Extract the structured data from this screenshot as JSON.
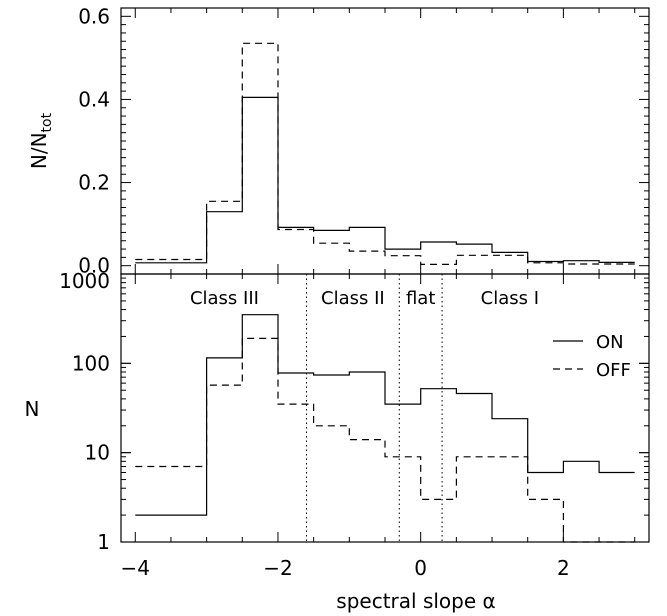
{
  "chart_data": [
    {
      "type": "line",
      "panel": "top",
      "ylabel_main": "N/N",
      "ylabel_sub": "tot",
      "xlim": [
        -4.2,
        3.2
      ],
      "ylim": [
        -0.02,
        0.62
      ],
      "yscale": "linear",
      "yticks": [
        0.0,
        0.2,
        0.4,
        0.6
      ],
      "ytick_labels": [
        "0.0",
        "0.2",
        "0.4",
        "0.6"
      ],
      "bin_edges": [
        -4,
        -3.5,
        -3,
        -2.5,
        -2,
        -1.5,
        -1,
        -0.5,
        0,
        0.5,
        1,
        1.5,
        2,
        2.5,
        3
      ],
      "series": [
        {
          "name": "ON",
          "style": "solid",
          "values": [
            0.007,
            0.007,
            0.13,
            0.405,
            0.092,
            0.085,
            0.092,
            0.04,
            0.057,
            0.052,
            0.032,
            0.01,
            0.012,
            0.008
          ]
        },
        {
          "name": "OFF",
          "style": "dashed",
          "values": [
            0.015,
            0.015,
            0.155,
            0.535,
            0.087,
            0.054,
            0.035,
            0.024,
            0.003,
            0.025,
            0.025,
            0.007,
            0.004,
            0.004
          ]
        }
      ]
    },
    {
      "type": "line",
      "panel": "bottom",
      "xlabel": "spectral slope α",
      "ylabel": "N",
      "xlim": [
        -4.2,
        3.2
      ],
      "ylim": [
        1,
        1000
      ],
      "yscale": "log",
      "xticks": [
        -4,
        -2,
        0,
        2
      ],
      "xtick_labels": [
        "−4",
        "−2",
        "0",
        "2"
      ],
      "yticks": [
        1,
        10,
        100,
        1000
      ],
      "ytick_labels": [
        "1",
        "10",
        "100",
        "1000"
      ],
      "bin_edges": [
        -4,
        -3.5,
        -3,
        -2.5,
        -2,
        -1.5,
        -1,
        -0.5,
        0,
        0.5,
        1,
        1.5,
        2,
        2.5,
        3
      ],
      "series": [
        {
          "name": "ON",
          "style": "solid",
          "values": [
            2,
            2,
            115,
            350,
            78,
            74,
            80,
            35,
            52,
            46,
            24,
            6,
            8,
            6
          ]
        },
        {
          "name": "OFF",
          "style": "dashed",
          "values": [
            7,
            7,
            57,
            190,
            35,
            20,
            14,
            9,
            3,
            9,
            9,
            3,
            1,
            1
          ]
        }
      ],
      "class_boundaries": [
        -1.6,
        -0.3,
        0.3
      ],
      "class_labels": [
        {
          "text": "Class III",
          "x": -2.75
        },
        {
          "text": "Class II",
          "x": -0.95
        },
        {
          "text": "flat",
          "x": 0.0
        },
        {
          "text": "Class I",
          "x": 1.25
        }
      ],
      "legend": {
        "position": "top-right",
        "entries": [
          {
            "label": "ON",
            "style": "solid"
          },
          {
            "label": "OFF",
            "style": "dashed"
          }
        ]
      }
    }
  ]
}
